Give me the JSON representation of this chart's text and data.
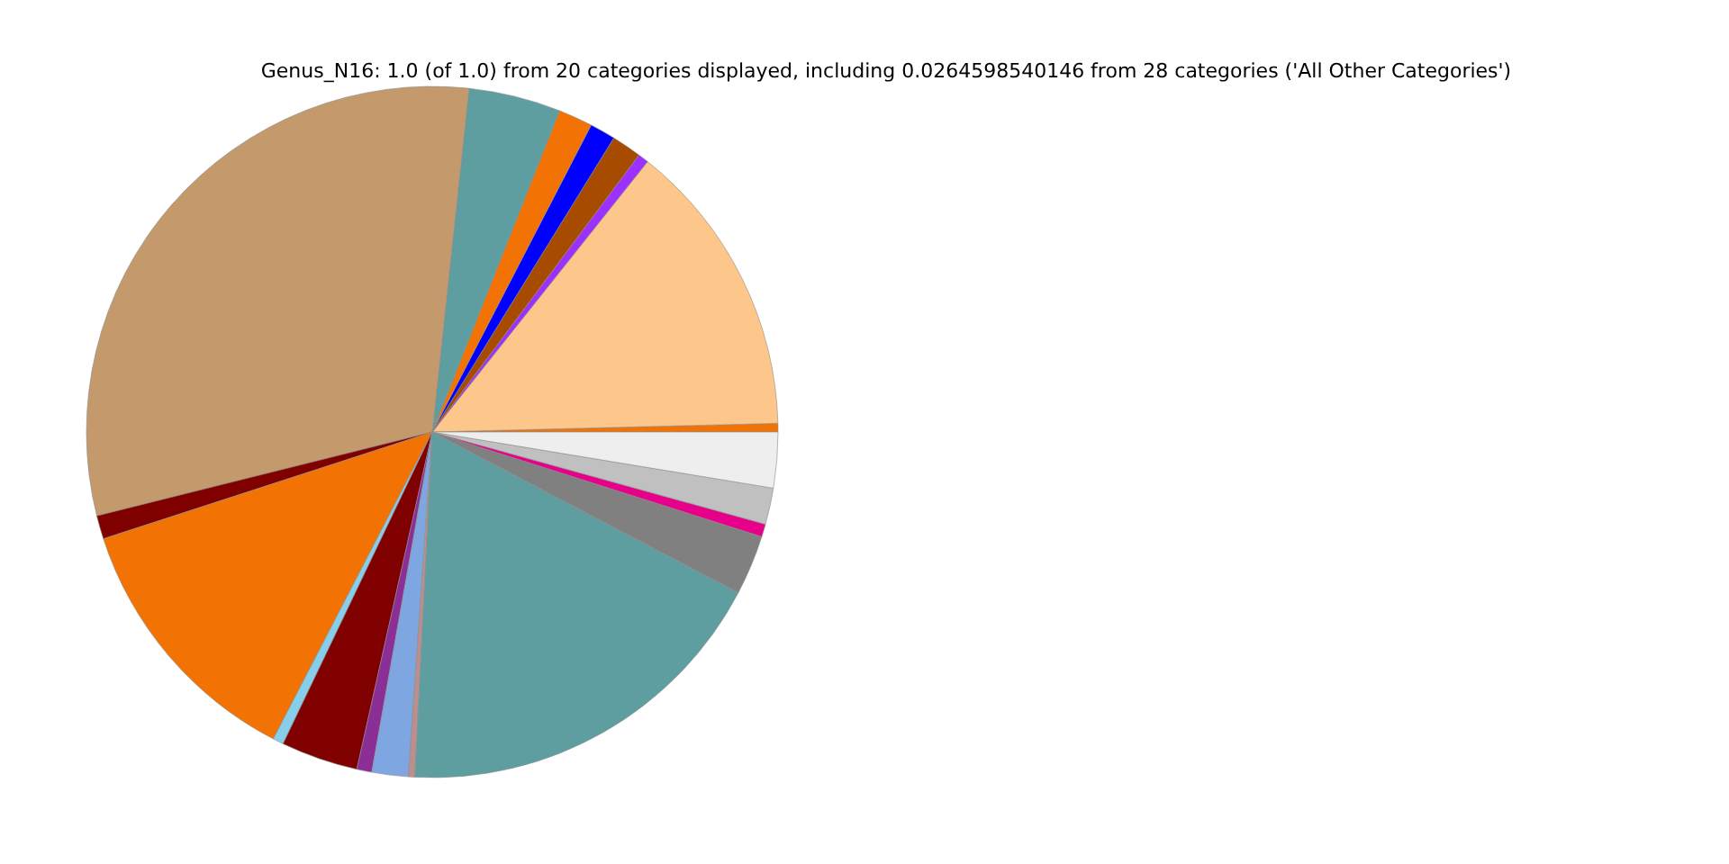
{
  "chart_data": {
    "type": "pie",
    "title": "Genus_N16: 1.0 (of 1.0) from 20 categories displayed, including 0.0264598540146 from 28 categories ('All Other Categories')",
    "categories": [
      null,
      null,
      null,
      null,
      null,
      null,
      null,
      null,
      null,
      null,
      null,
      null,
      null,
      null,
      null,
      null,
      null,
      null,
      null,
      null
    ],
    "values": [
      0.4,
      13.9,
      0.5,
      1.4,
      1.2,
      1.6,
      4.3,
      30.6,
      1.1,
      12.4,
      0.5,
      3.6,
      0.7,
      1.7,
      0.3,
      18.1,
      2.8,
      0.6,
      1.7,
      2.6
    ],
    "colors": [
      "#f27304",
      "#fdc68a",
      "#9b30ff",
      "#a64b00",
      "#0000ff",
      "#f27304",
      "#5f9ea0",
      "#c49a6c",
      "#800000",
      "#f27304",
      "#87ceeb",
      "#800000",
      "#8b2f97",
      "#7ea6e0",
      "#bc8f8f",
      "#5f9ea0",
      "#808080",
      "#e6008a",
      "#c0c0c0",
      "#eeeeee"
    ]
  }
}
